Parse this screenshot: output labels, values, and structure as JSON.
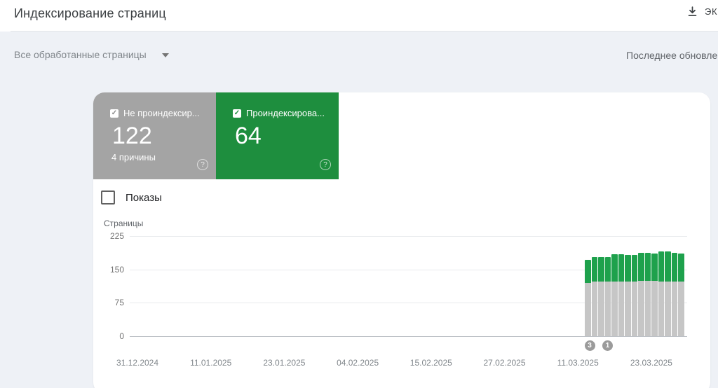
{
  "header": {
    "title": "Индексирование страниц",
    "export_label": "ЭК",
    "filter_label": "Все обработанные страницы",
    "last_update_label": "Последнее обновле"
  },
  "icons": {
    "check": "✓",
    "question": "?"
  },
  "tiles": [
    {
      "label": "Не проиндексир...",
      "value": "122",
      "sub": "4 причины",
      "checked": true,
      "color": "#a4a4a4"
    },
    {
      "label": "Проиндексирова...",
      "value": "64",
      "checked": true,
      "color": "#1e8e3e"
    }
  ],
  "controls": {
    "impressions_label": "Показы",
    "impressions_checked": false
  },
  "chart_data": {
    "type": "bar",
    "stacked": true,
    "ylabel": "Страницы",
    "ylim": [
      0,
      225
    ],
    "yticks": [
      0,
      75,
      150,
      225
    ],
    "grid": true,
    "legend": "none",
    "x_labels": [
      "31.12.2024",
      "11.01.2025",
      "23.01.2025",
      "04.02.2025",
      "15.02.2025",
      "27.02.2025",
      "11.03.2025",
      "23.03.2025"
    ],
    "series": [
      {
        "name": "Не проиндексировано",
        "color": "#c6c6c6",
        "values": [
          120,
          122,
          122,
          122,
          123,
          123,
          123,
          123,
          124,
          124,
          124,
          122,
          122,
          122,
          122
        ]
      },
      {
        "name": "Проиндексировано",
        "color": "#1ea14c",
        "values": [
          52,
          56,
          56,
          56,
          61,
          61,
          60,
          60,
          63,
          63,
          62,
          68,
          68,
          66,
          64
        ]
      }
    ],
    "annotations": [
      {
        "label": "3"
      },
      {
        "label": "1"
      }
    ]
  }
}
